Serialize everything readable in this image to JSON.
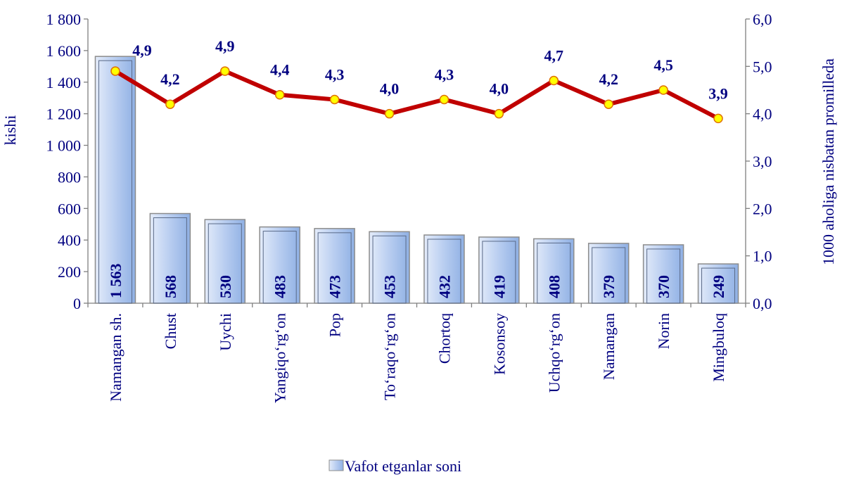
{
  "chart_data": {
    "type": "combo",
    "y_label": "kishi",
    "y2_label": "1000 aholiga nisbatan promilleda",
    "categories": [
      "Namangan  sh.",
      "Chust",
      "Uychi",
      "Yangiqo‘rg‘on",
      "Pop",
      "To‘raqo‘rg‘on",
      "Chortoq",
      "Kosonsoy",
      "Uchqo‘rg‘on",
      "Namangan",
      "Norin",
      "Mingbuloq"
    ],
    "series": [
      {
        "name": "Vafot etganlar soni",
        "type": "bar",
        "color": "#b8cdf0",
        "values": [
          1563,
          568,
          530,
          483,
          473,
          453,
          432,
          419,
          408,
          379,
          370,
          249
        ],
        "value_labels": [
          "1 563",
          "568",
          "530",
          "483",
          "473",
          "453",
          "432",
          "419",
          "408",
          "379",
          "370",
          "249"
        ]
      },
      {
        "type": "line",
        "axis": "y2",
        "color": "#c00000",
        "marker_color": "#ffff00",
        "values": [
          4.9,
          4.2,
          4.9,
          4.4,
          4.3,
          4.0,
          4.3,
          4.0,
          4.7,
          4.2,
          4.5,
          3.9
        ],
        "value_labels": [
          "4,9",
          "4,2",
          "4,9",
          "4,4",
          "4,3",
          "4,0",
          "4,3",
          "4,0",
          "4,7",
          "4,2",
          "4,5",
          "3,9"
        ]
      }
    ],
    "ylim": [
      0,
      1800
    ],
    "yticks": [
      0,
      200,
      400,
      600,
      800,
      {
        "value": 1000,
        "label": "1 000"
      },
      {
        "value": 1200,
        "label": "1 200"
      },
      {
        "value": 1400,
        "label": "1 400"
      },
      {
        "value": 1600,
        "label": "1 600"
      },
      {
        "value": 1800,
        "label": "1 800"
      }
    ],
    "y2lim": [
      0,
      6
    ],
    "y2ticks": [
      {
        "value": 0,
        "label": "0,0"
      },
      {
        "value": 1,
        "label": "1,0"
      },
      {
        "value": 2,
        "label": "2,0"
      },
      {
        "value": 3,
        "label": "3,0"
      },
      {
        "value": 4,
        "label": "4,0"
      },
      {
        "value": 5,
        "label": "5,0"
      },
      {
        "value": 6,
        "label": "6,0"
      }
    ],
    "legend": "bottom",
    "grid": false
  }
}
